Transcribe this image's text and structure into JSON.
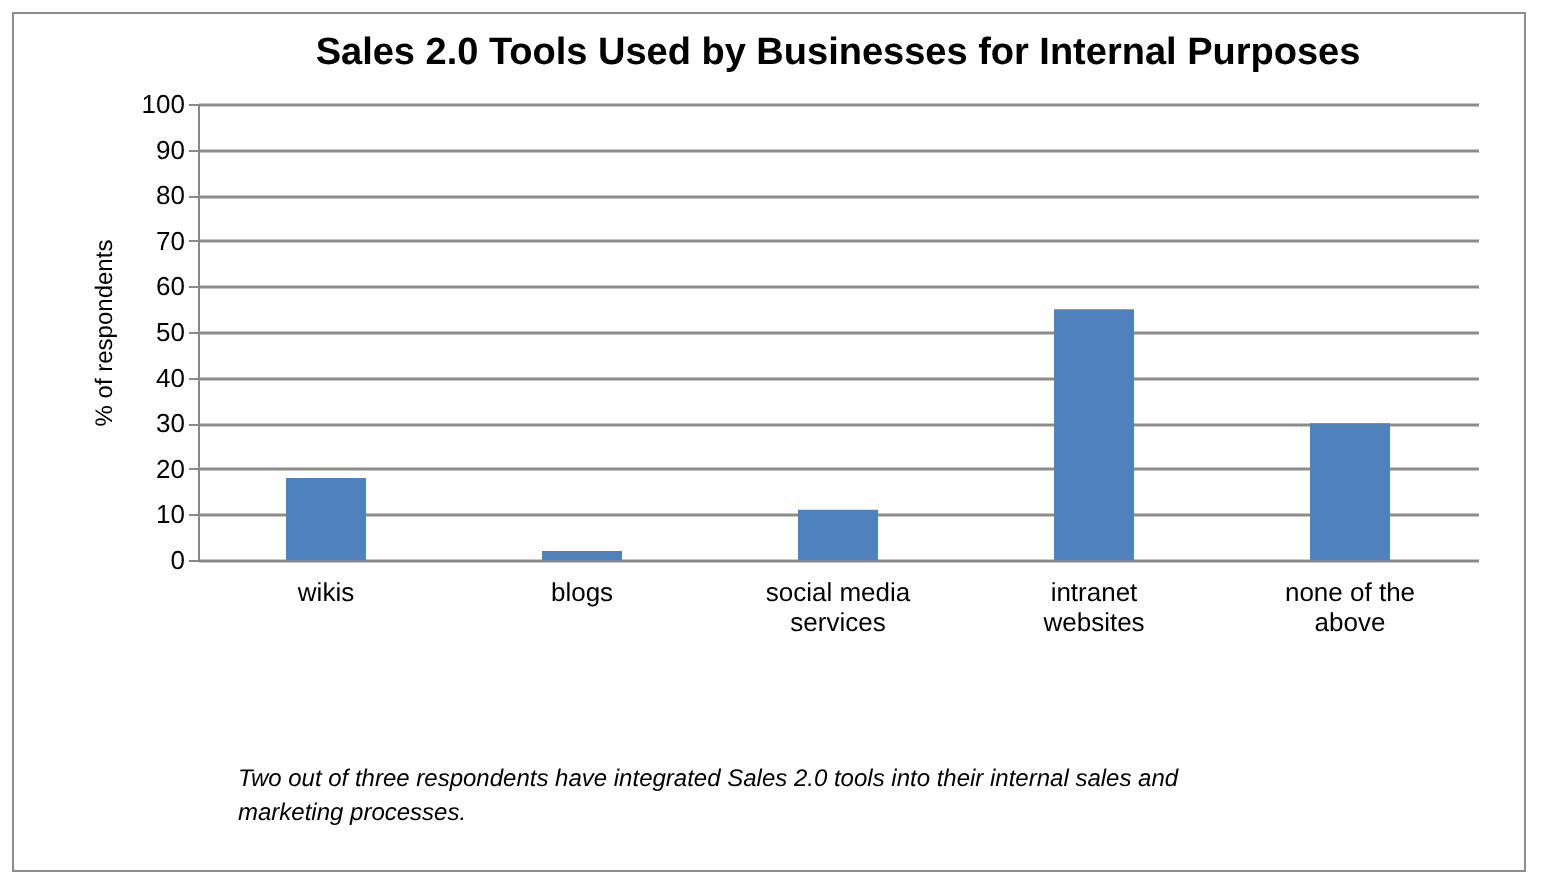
{
  "chart_data": {
    "type": "bar",
    "title": "Sales 2.0 Tools Used by Businesses for Internal Purposes",
    "ylabel": "% of respondents",
    "categories": [
      "wikis",
      "blogs",
      "social media services",
      "intranet websites",
      "none of the above"
    ],
    "values": [
      18,
      2,
      11,
      55,
      30
    ],
    "color": "#4f81bd",
    "ylim": [
      0,
      100
    ],
    "yticks": [
      0,
      10,
      20,
      30,
      40,
      50,
      60,
      70,
      80,
      90,
      100
    ],
    "grid": true,
    "annotations": [
      "Two out of three respondents have integrated Sales 2.0 tools into their internal sales and marketing processes."
    ]
  }
}
